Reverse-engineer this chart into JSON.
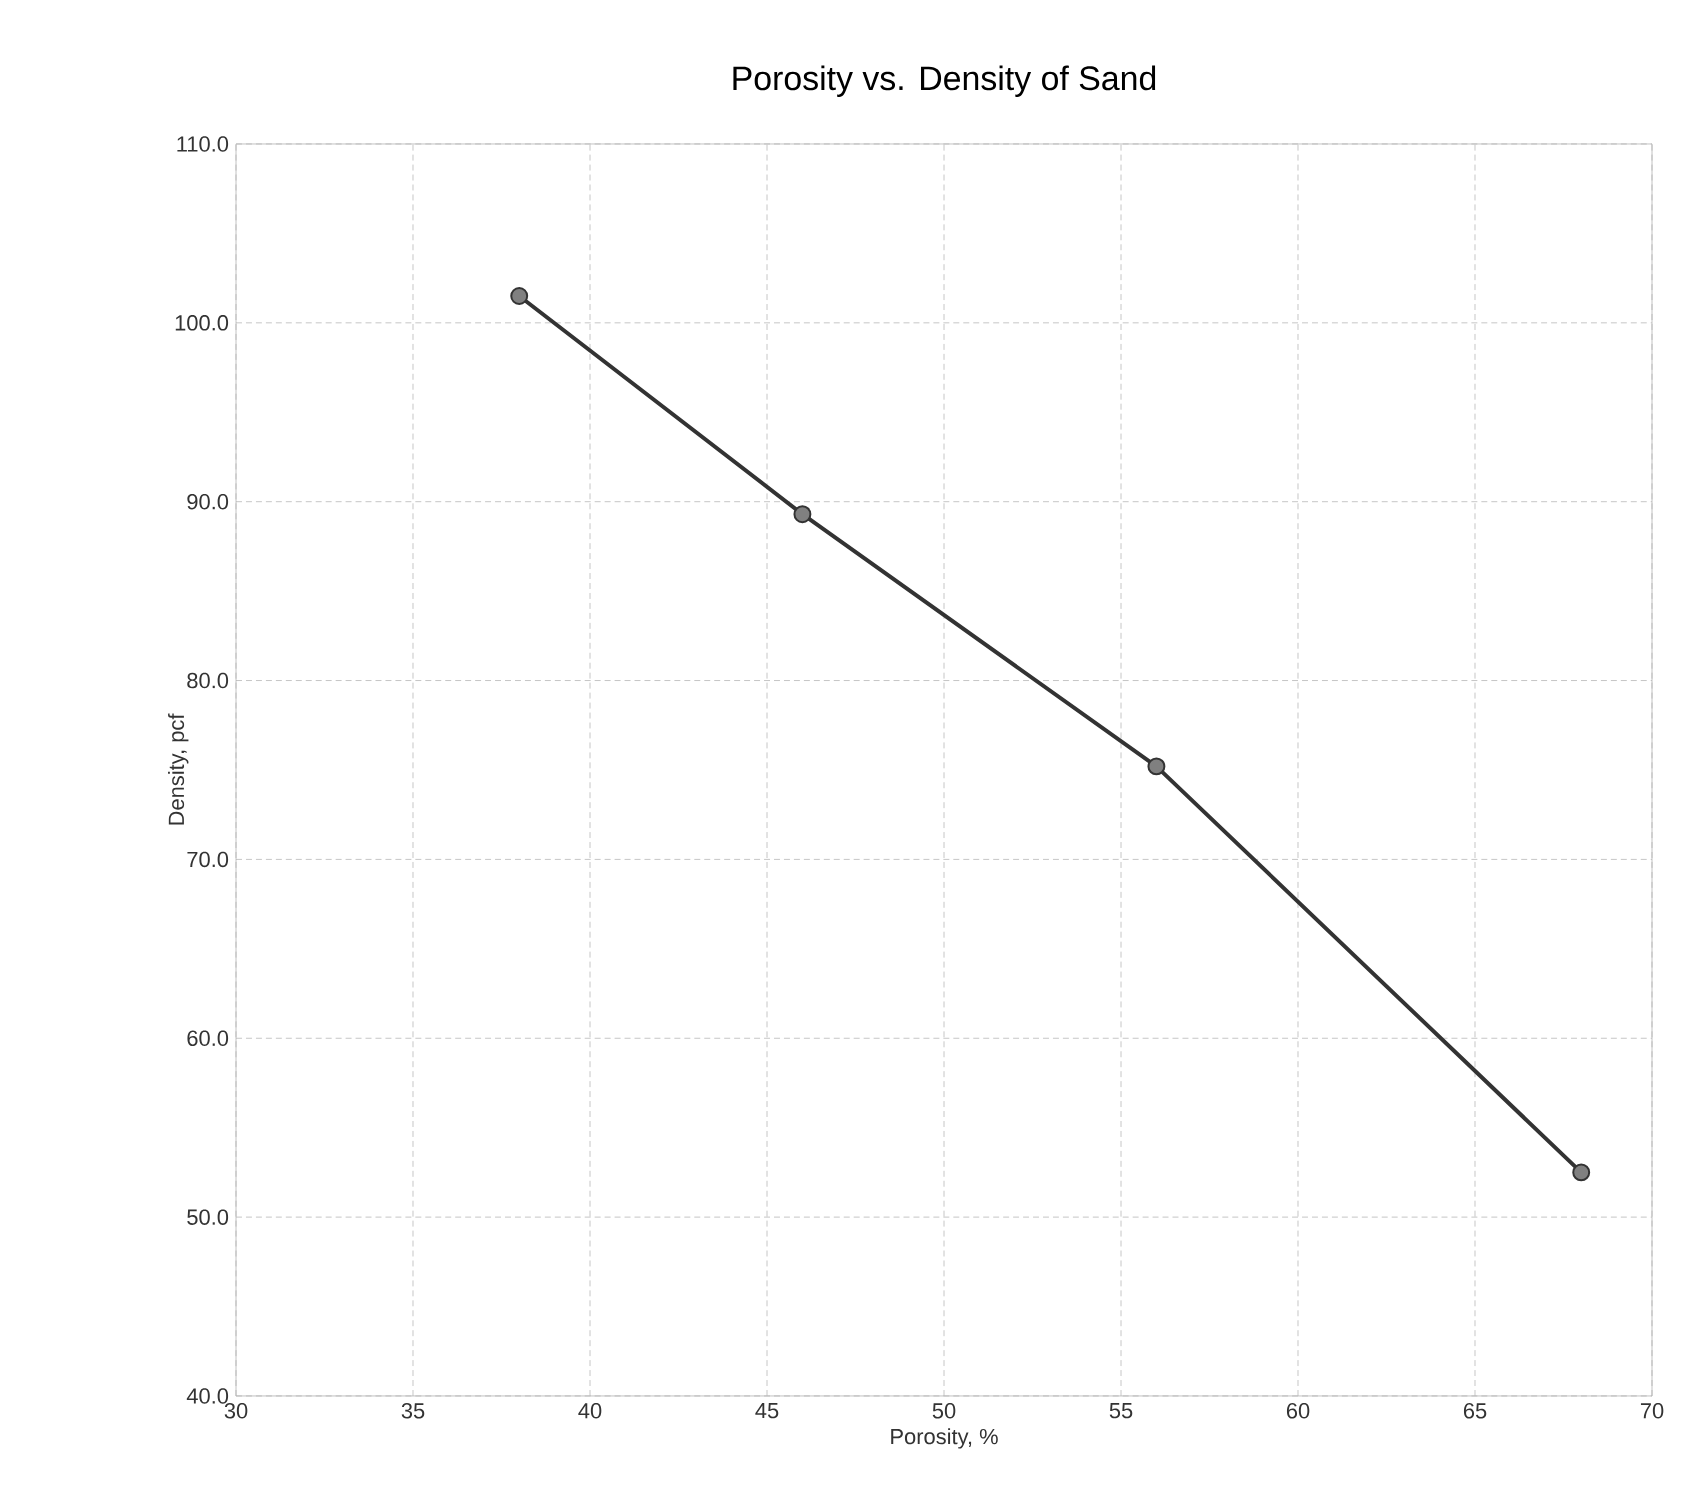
{
  "chart_data": {
    "type": "line",
    "title": "Porosity vs. Density of Sand",
    "xlabel": "Porosity, %",
    "ylabel": "Density, pcf",
    "x": [
      38,
      46,
      56,
      68
    ],
    "series": [
      {
        "color": "#333333",
        "values": [
          101.5,
          89.3,
          75.2,
          52.5
        ]
      }
    ],
    "xlim": [
      30,
      70
    ],
    "ylim": [
      40,
      110
    ],
    "xticks": [
      30,
      35,
      40,
      45,
      50,
      55,
      60,
      65,
      70
    ],
    "yticks": [
      {
        "value": 40,
        "label": "40.0"
      },
      {
        "value": 50,
        "label": "50.0"
      },
      {
        "value": 60,
        "label": "60.0"
      },
      {
        "value": 70,
        "label": "70.0"
      },
      {
        "value": 80,
        "label": "80.0"
      },
      {
        "value": 90,
        "label": "90.0"
      },
      {
        "value": 100,
        "label": "100.0"
      },
      {
        "value": 110,
        "label": "110.0"
      }
    ],
    "grid": true,
    "marker": "circle",
    "line_style": "solid"
  }
}
